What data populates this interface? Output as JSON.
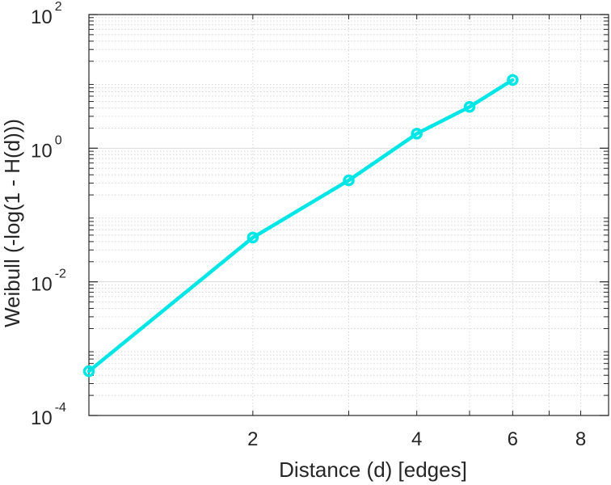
{
  "chart_data": {
    "type": "line",
    "title": "",
    "xlabel": "Distance (d) [edges]",
    "ylabel": "Weibull (-log(1 - H(d)))",
    "x_scale": "log",
    "y_scale": "log",
    "xlim": [
      1,
      9
    ],
    "ylim": [
      0.0001,
      100
    ],
    "grid": true,
    "minor_grid": true,
    "x_ticks": [
      {
        "value": 2,
        "label": "2"
      },
      {
        "value": 4,
        "label": "4"
      },
      {
        "value": 6,
        "label": "6"
      },
      {
        "value": 8,
        "label": "8"
      }
    ],
    "y_ticks": [
      {
        "value": 0.0001,
        "base": "10",
        "exp": "-4"
      },
      {
        "value": 0.01,
        "base": "10",
        "exp": "-2"
      },
      {
        "value": 1,
        "base": "10",
        "exp": "0"
      },
      {
        "value": 100,
        "base": "10",
        "exp": "2"
      }
    ],
    "series": [
      {
        "color": "#00e5e5",
        "marker": "circle",
        "x": [
          1,
          2,
          3,
          4,
          5,
          6
        ],
        "y": [
          0.00046,
          0.046,
          0.33,
          1.65,
          4.15,
          10.5
        ]
      }
    ]
  }
}
